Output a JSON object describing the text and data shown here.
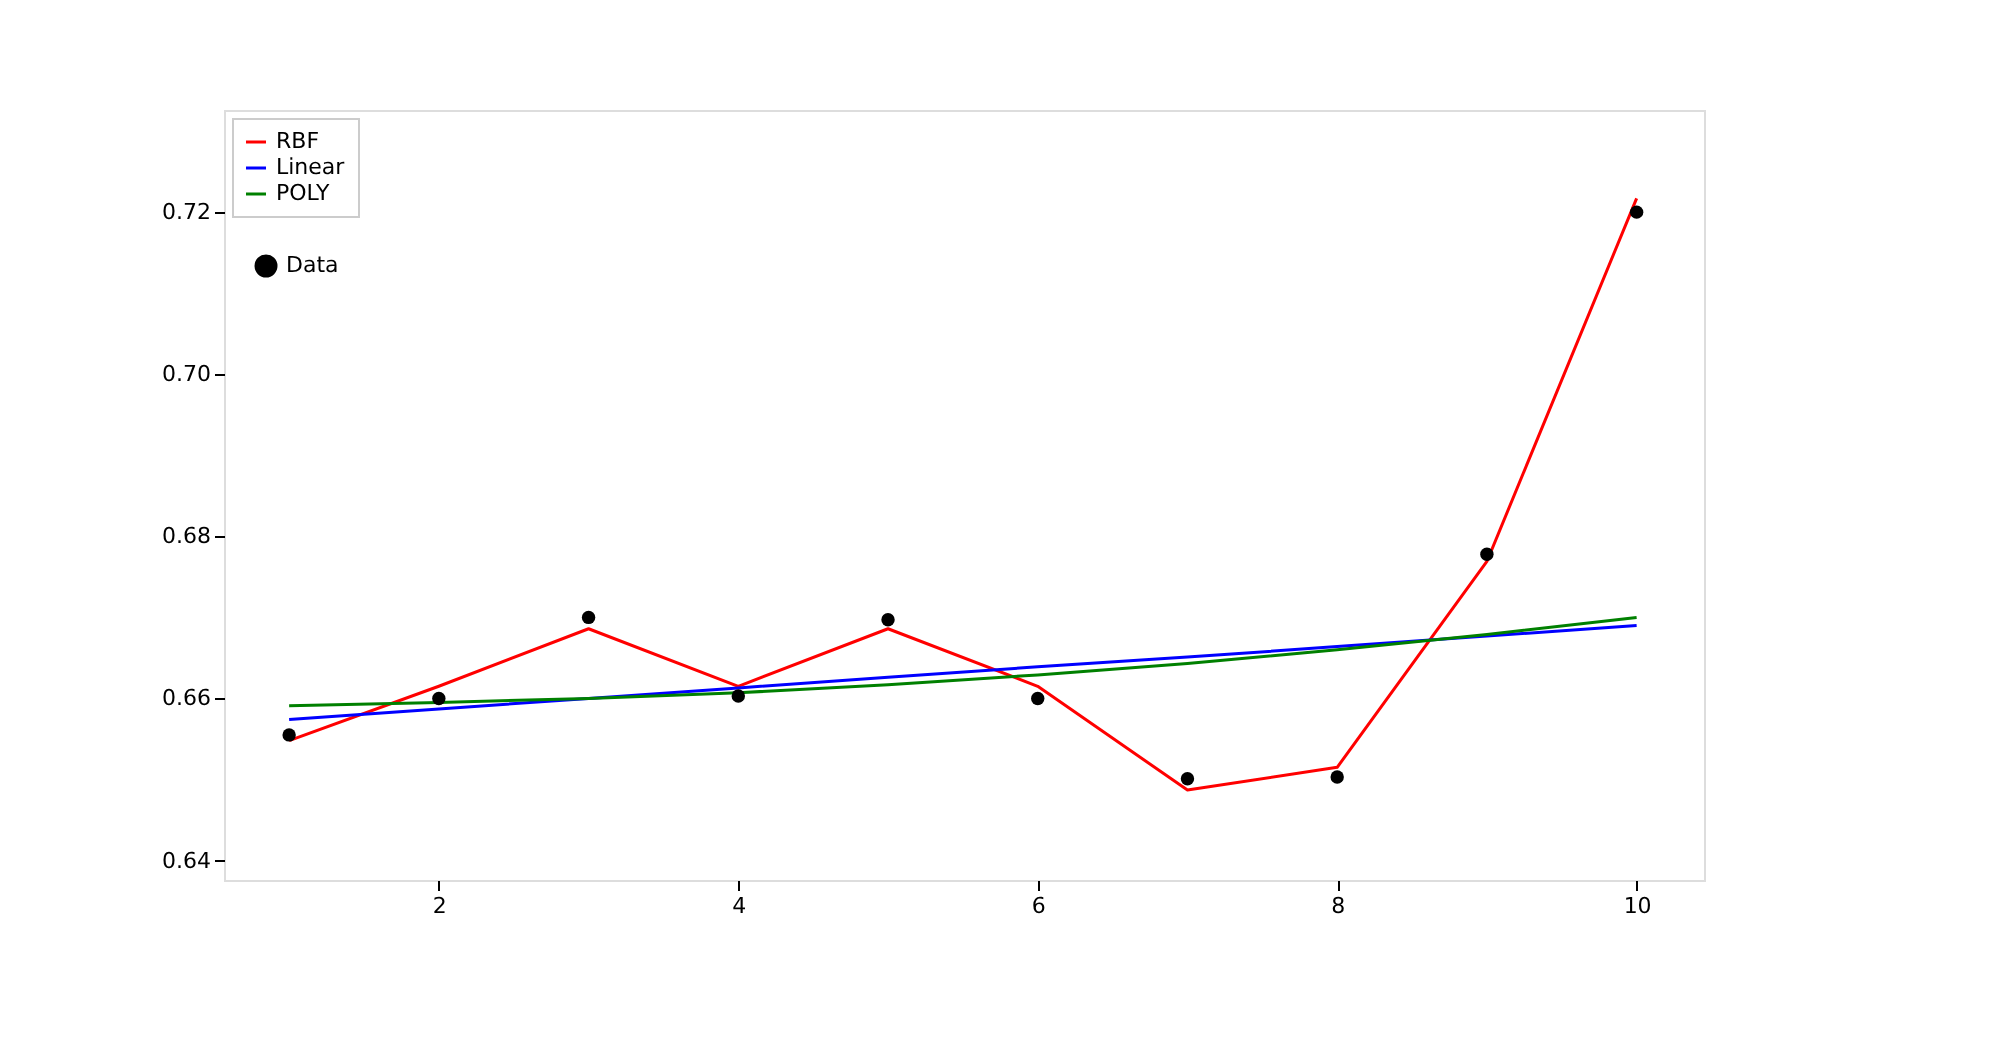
{
  "chart_data": {
    "type": "line",
    "x": [
      1,
      2,
      3,
      4,
      5,
      6,
      7,
      8,
      9,
      10
    ],
    "series": [
      {
        "name": "RBF",
        "color": "#ff0000",
        "values": [
          0.6548,
          0.6615,
          0.6686,
          0.6615,
          0.6686,
          0.6615,
          0.6487,
          0.6515,
          0.6769,
          0.7217
        ]
      },
      {
        "name": "Linear",
        "color": "#0000ff",
        "values": [
          0.6574,
          0.6587,
          0.66,
          0.6613,
          0.6626,
          0.6639,
          0.6651,
          0.6664,
          0.6677,
          0.669
        ]
      },
      {
        "name": "POLY",
        "color": "#008000",
        "values": [
          0.6591,
          0.6595,
          0.66,
          0.6607,
          0.6617,
          0.6629,
          0.6643,
          0.666,
          0.6679,
          0.67
        ]
      },
      {
        "name": "Data",
        "color": "#000000",
        "type": "scatter",
        "marker": "circle",
        "values": [
          0.6555,
          0.66,
          0.67,
          0.6603,
          0.6697,
          0.66,
          0.6501,
          0.6503,
          0.6778,
          0.72
        ]
      }
    ],
    "xlim": [
      0.565,
      10.45
    ],
    "xticks": [
      2,
      4,
      6,
      8,
      10
    ],
    "ylim": [
      0.6376,
      0.7326
    ],
    "yticks": [
      {
        "value": 0.64,
        "label": "0.64"
      },
      {
        "value": 0.66,
        "label": "0.66"
      },
      {
        "value": 0.68,
        "label": "0.68"
      },
      {
        "value": 0.7,
        "label": "0.70"
      },
      {
        "value": 0.72,
        "label": "0.72"
      }
    ],
    "legend": "top left",
    "grid": false
  }
}
